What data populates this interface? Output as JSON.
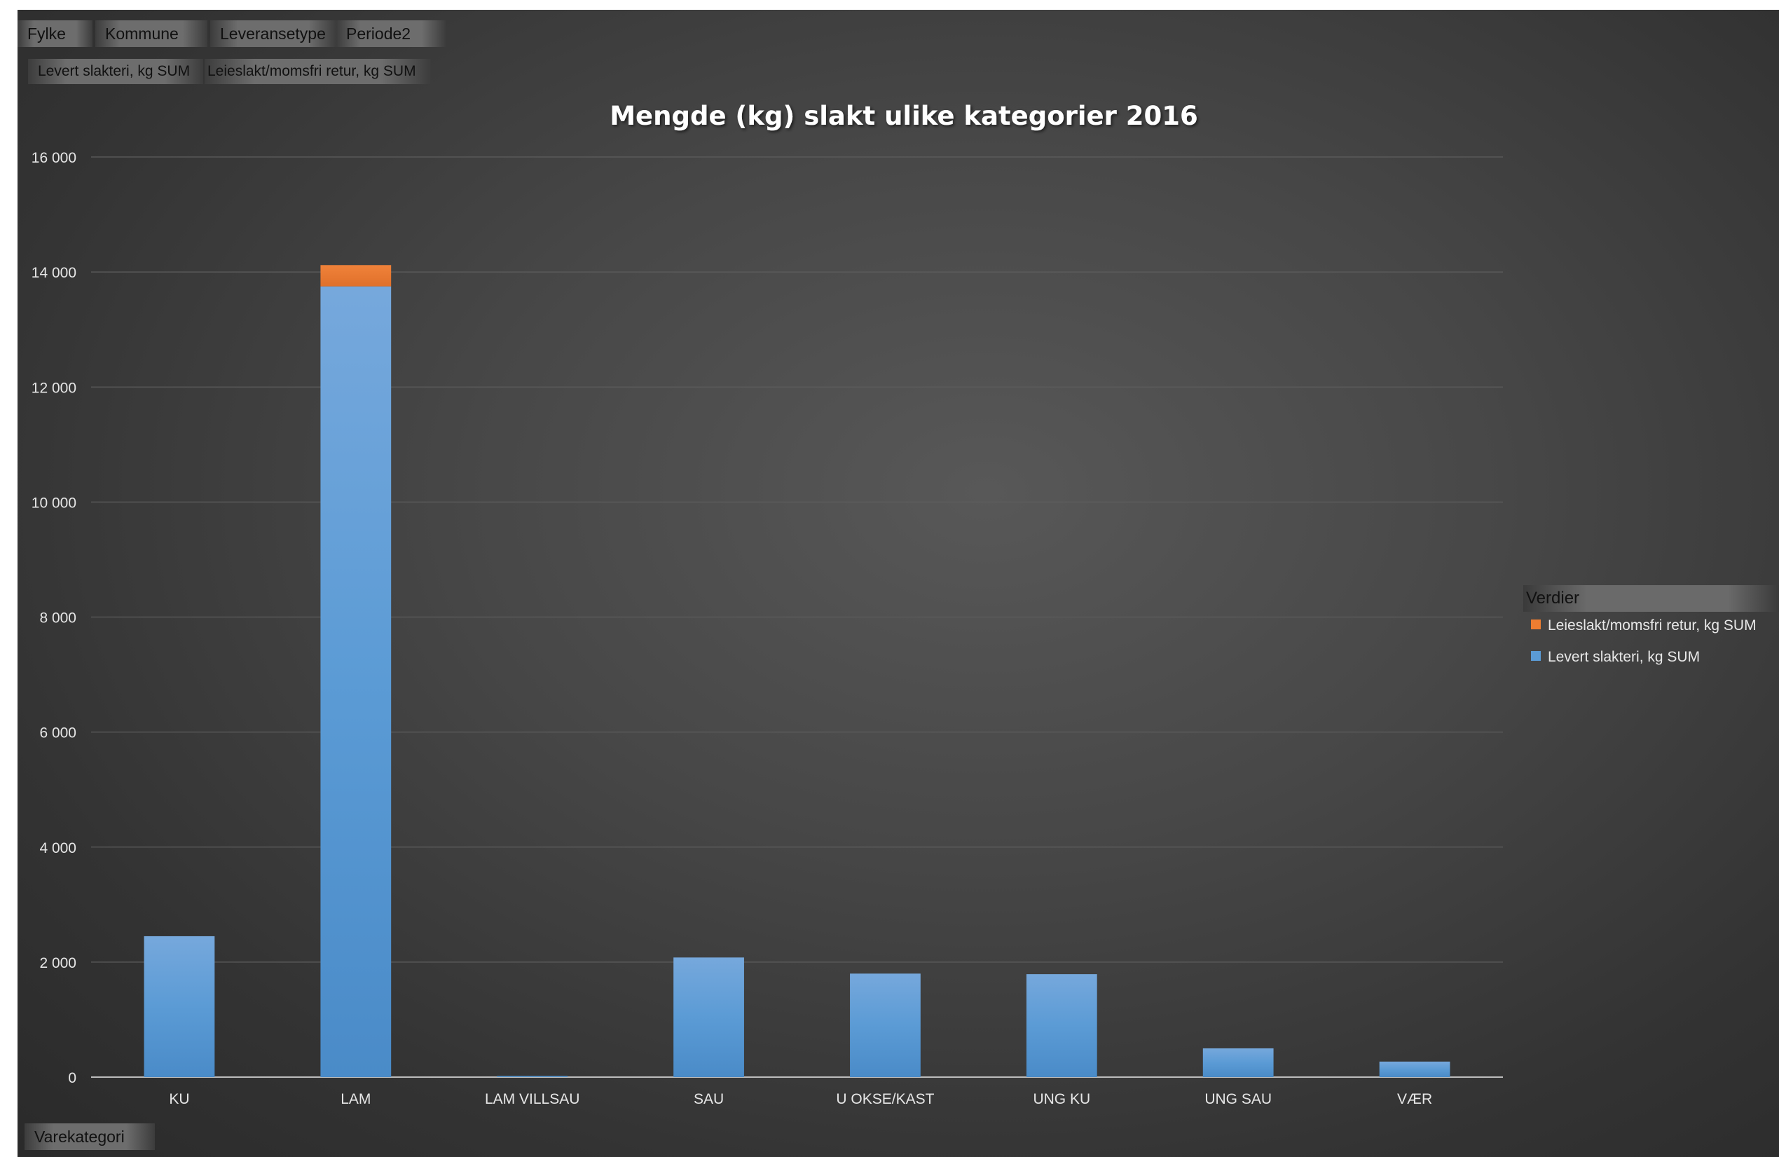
{
  "filters": {
    "row1": [
      "Fylke",
      "Kommune",
      "Leveransetype",
      "Periode2"
    ],
    "row2": [
      "Levert slakteri, kg SUM",
      "Leieslakt/momsfri retur, kg SUM"
    ]
  },
  "axis_field": "Varekategori",
  "legend": {
    "title": "Verdier",
    "items": [
      {
        "label": "Leieslakt/momsfri retur, kg SUM",
        "color": "#ed7d31"
      },
      {
        "label": "Levert slakteri, kg SUM",
        "color": "#5b9bd5"
      }
    ]
  },
  "chart_data": {
    "type": "bar",
    "stacked": true,
    "title": "Mengde (kg) slakt ulike kategorier 2016",
    "xlabel": "",
    "ylabel": "",
    "categories": [
      "KU",
      "LAM",
      "LAM VILLSAU",
      "SAU",
      "U OKSE/KAST",
      "UNG KU",
      "UNG SAU",
      "VÆR"
    ],
    "series": [
      {
        "name": "Levert slakteri, kg SUM",
        "color": "#5b9bd5",
        "values": [
          2450,
          13750,
          20,
          2080,
          1800,
          1790,
          500,
          270
        ]
      },
      {
        "name": "Leieslakt/momsfri retur, kg SUM",
        "color": "#ed7d31",
        "values": [
          0,
          370,
          0,
          0,
          0,
          0,
          0,
          0
        ]
      }
    ],
    "ylim": [
      0,
      16000
    ],
    "yticks": [
      0,
      2000,
      4000,
      6000,
      8000,
      10000,
      12000,
      14000,
      16000
    ],
    "ytick_labels": [
      "0",
      "2 000",
      "4 000",
      "6 000",
      "8 000",
      "10 000",
      "12 000",
      "14 000",
      "16 000"
    ],
    "grid": true,
    "legend_position": "right"
  }
}
